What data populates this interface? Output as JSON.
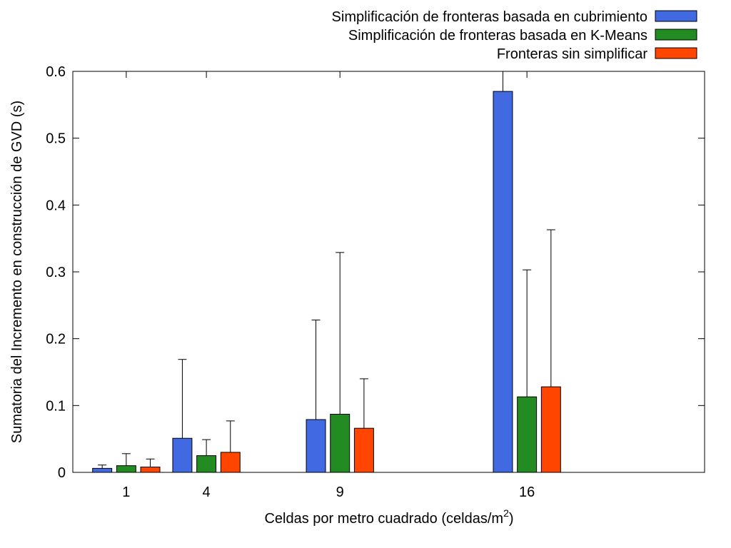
{
  "chart_data": {
    "type": "bar",
    "xlabel": "Celdas por metro cuadrado (celdas/m",
    "xlabel_superscript": "2",
    "xlabel_suffix": ")",
    "ylabel": "Sumatoria del Incremento en construcción de GVD (s)",
    "x": [
      1,
      4,
      9,
      16
    ],
    "x_tick_labels": [
      "1",
      "4",
      "9",
      "16"
    ],
    "xlim": [
      -1,
      22.65
    ],
    "ylim": [
      0,
      0.6
    ],
    "y_ticks": [
      0,
      0.1,
      0.2,
      0.3,
      0.4,
      0.5,
      0.6
    ],
    "y_tick_labels": [
      "0",
      "0.1",
      "0.2",
      "0.3",
      "0.4",
      "0.5",
      "0.6"
    ],
    "grid": false,
    "legend_position": "top-right, outside plot",
    "series": [
      {
        "name": "Simplificación de fronteras basada en cubrimiento",
        "color": "#4169e1",
        "values": [
          0.006,
          0.051,
          0.079,
          0.57
        ],
        "error_upper": [
          0.011,
          0.169,
          0.228,
          0.605
        ]
      },
      {
        "name": "Simplificación de fronteras basada en K-Means",
        "color": "#228b22",
        "values": [
          0.01,
          0.025,
          0.087,
          0.113
        ],
        "error_upper": [
          0.028,
          0.049,
          0.329,
          0.303
        ]
      },
      {
        "name": "Fronteras sin simplificar",
        "color": "#ff4500",
        "values": [
          0.008,
          0.03,
          0.066,
          0.128
        ],
        "error_upper": [
          0.02,
          0.077,
          0.14,
          0.363
        ]
      }
    ]
  }
}
